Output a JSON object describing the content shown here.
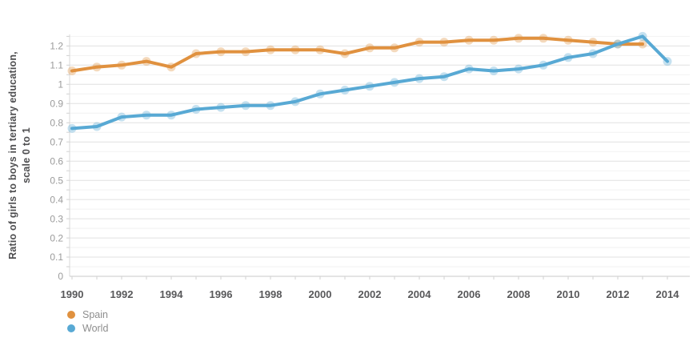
{
  "chart_data": {
    "type": "line",
    "title": "",
    "ylabel_lines": [
      "Ratio of girls to boys in tertiary education,",
      "scale 0 to 1"
    ],
    "x": [
      1990,
      1991,
      1992,
      1993,
      1994,
      1995,
      1996,
      1997,
      1998,
      1999,
      2000,
      2001,
      2002,
      2003,
      2004,
      2005,
      2006,
      2007,
      2008,
      2009,
      2010,
      2011,
      2012,
      2013,
      2014
    ],
    "series": [
      {
        "name": "Spain",
        "color": "#e0913f",
        "values": [
          1.07,
          1.09,
          1.1,
          1.12,
          1.09,
          1.16,
          1.17,
          1.17,
          1.18,
          1.18,
          1.18,
          1.16,
          1.19,
          1.19,
          1.22,
          1.22,
          1.23,
          1.23,
          1.24,
          1.24,
          1.23,
          1.22,
          1.21,
          1.21,
          null
        ]
      },
      {
        "name": "World",
        "color": "#58a9d4",
        "values": [
          0.77,
          0.78,
          0.83,
          0.84,
          0.84,
          0.87,
          0.88,
          0.89,
          0.89,
          0.91,
          0.95,
          0.97,
          0.99,
          1.01,
          1.03,
          1.04,
          1.08,
          1.07,
          1.08,
          1.1,
          1.14,
          1.16,
          1.21,
          1.25,
          1.12
        ]
      }
    ],
    "ylim": [
      0,
      1.26
    ],
    "ytick_values": [
      0,
      0.1,
      0.2,
      0.3,
      0.4,
      0.5,
      0.6,
      0.7,
      0.8,
      0.9,
      1.0,
      1.1,
      1.2
    ],
    "ytick_labels": [
      "0",
      "0.1",
      "0.2",
      "0.3",
      "0.4",
      "0.5",
      "0.6",
      "0.7",
      "0.8",
      "0.9",
      "1",
      "1.1",
      "1.2"
    ],
    "xtick_labels": [
      "1990",
      "1992",
      "1994",
      "1996",
      "1998",
      "2000",
      "2002",
      "2004",
      "2006",
      "2008",
      "2010",
      "2012",
      "2014"
    ],
    "grid": "horizontal, major every 0.1, minor every 0.05",
    "legend_position": "bottom-left"
  },
  "style": {
    "grid_major_color": "#e0e0e0",
    "grid_minor_color": "#f2f2f2",
    "axis_line_color": "#c8c8c8",
    "tick_color": "#d2d2d2",
    "marker_opacity": 0.35
  }
}
